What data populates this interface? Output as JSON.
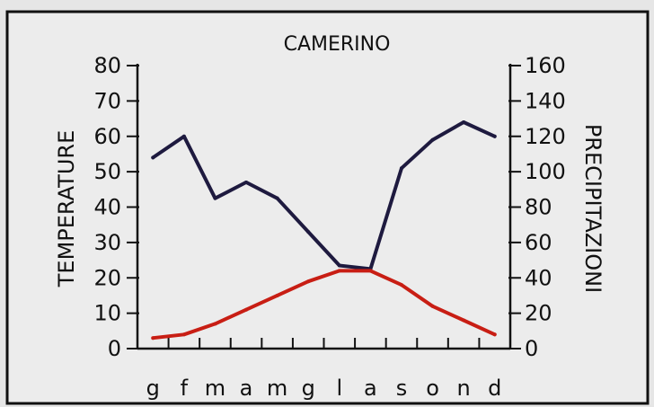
{
  "chart_data": {
    "type": "line",
    "title": "CAMERINO",
    "categories": [
      "g",
      "f",
      "m",
      "a",
      "m",
      "g",
      "l",
      "a",
      "s",
      "o",
      "n",
      "d"
    ],
    "y_left": {
      "label": "TEMPERATURE",
      "min": 0,
      "max": 80,
      "ticks": [
        0,
        10,
        20,
        30,
        40,
        50,
        60,
        70,
        80
      ]
    },
    "y_right": {
      "label": "PRECIPITAZIONI",
      "min": 0,
      "max": 160,
      "ticks": [
        0,
        20,
        40,
        60,
        80,
        100,
        120,
        140,
        160
      ]
    },
    "grid": false,
    "legend": "none",
    "series": [
      {
        "axis": "right",
        "color": "#1e1a3f",
        "values": [
          108,
          120,
          85,
          94,
          85,
          66,
          47,
          45,
          102,
          118,
          128,
          120
        ]
      },
      {
        "axis": "left",
        "color": "#c81e14",
        "values": [
          3,
          4,
          7,
          11,
          15,
          19,
          22,
          22,
          18,
          12,
          8,
          4
        ]
      }
    ]
  }
}
